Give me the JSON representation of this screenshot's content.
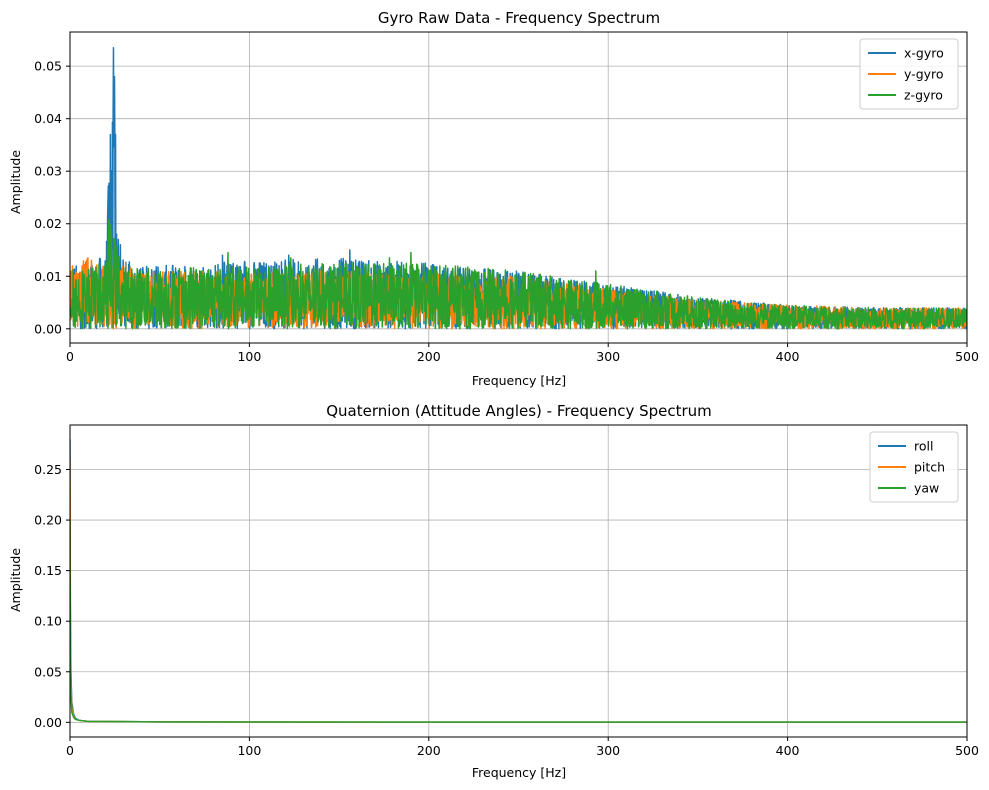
{
  "chart_data": [
    {
      "type": "line",
      "title": "Gyro Raw Data - Frequency Spectrum",
      "xlabel": "Frequency [Hz]",
      "ylabel": "Amplitude",
      "xlim": [
        0,
        500
      ],
      "ylim": [
        -0.0027,
        0.0565
      ],
      "xticks": [
        0,
        100,
        200,
        300,
        400,
        500
      ],
      "yticks": [
        0.0,
        0.01,
        0.02,
        0.03,
        0.04,
        0.05
      ],
      "xtick_labels": [
        "0",
        "100",
        "200",
        "300",
        "400",
        "500"
      ],
      "ytick_labels": [
        "0.00",
        "0.01",
        "0.02",
        "0.03",
        "0.04",
        "0.05"
      ],
      "grid": true,
      "legend_position": "top-right",
      "series": [
        {
          "name": "x-gyro",
          "color": "#1f77b4",
          "envelope_x": [
            0,
            5,
            10,
            20,
            24,
            25,
            26,
            27,
            30,
            50,
            100,
            150,
            200,
            250,
            300,
            350,
            400,
            450,
            500
          ],
          "envelope_y": [
            0.013,
            0.012,
            0.013,
            0.014,
            0.054,
            0.048,
            0.018,
            0.017,
            0.013,
            0.012,
            0.013,
            0.0135,
            0.0125,
            0.011,
            0.0085,
            0.006,
            0.0045,
            0.004,
            0.004
          ],
          "peaks_x": [
            24.3,
            24.8,
            25.3,
            26,
            27,
            28,
            85,
            122,
            156
          ],
          "peaks_y": [
            0.0535,
            0.048,
            0.037,
            0.018,
            0.017,
            0.016,
            0.014,
            0.014,
            0.015
          ]
        },
        {
          "name": "y-gyro",
          "color": "#ff7f0e",
          "envelope_x": [
            0,
            5,
            10,
            20,
            30,
            50,
            100,
            150,
            200,
            250,
            300,
            350,
            400,
            450,
            500
          ],
          "envelope_y": [
            0.012,
            0.0125,
            0.0135,
            0.012,
            0.012,
            0.011,
            0.011,
            0.011,
            0.0105,
            0.01,
            0.0075,
            0.0055,
            0.0045,
            0.004,
            0.004
          ],
          "peaks_x": [
            10,
            12,
            31
          ],
          "peaks_y": [
            0.0135,
            0.013,
            0.0125
          ]
        },
        {
          "name": "z-gyro",
          "color": "#2ca02c",
          "envelope_x": [
            0,
            5,
            10,
            20,
            22,
            30,
            50,
            100,
            150,
            200,
            250,
            300,
            350,
            400,
            450,
            500
          ],
          "envelope_y": [
            0.012,
            0.0115,
            0.012,
            0.0125,
            0.021,
            0.012,
            0.0115,
            0.012,
            0.0125,
            0.0125,
            0.011,
            0.0085,
            0.006,
            0.0045,
            0.004,
            0.004
          ],
          "peaks_x": [
            21.5,
            22,
            88,
            123,
            178,
            190,
            293
          ],
          "peaks_y": [
            0.0205,
            0.021,
            0.0145,
            0.0135,
            0.0135,
            0.0145,
            0.011
          ]
        }
      ]
    },
    {
      "type": "line",
      "title": "Quaternion (Attitude Angles) - Frequency Spectrum",
      "xlabel": "Frequency [Hz]",
      "ylabel": "Amplitude",
      "xlim": [
        0,
        500
      ],
      "ylim": [
        -0.0145,
        0.294
      ],
      "xticks": [
        0,
        100,
        200,
        300,
        400,
        500
      ],
      "yticks": [
        0.0,
        0.05,
        0.1,
        0.15,
        0.2,
        0.25
      ],
      "xtick_labels": [
        "0",
        "100",
        "200",
        "300",
        "400",
        "500"
      ],
      "ytick_labels": [
        "0.00",
        "0.05",
        "0.10",
        "0.15",
        "0.20",
        "0.25"
      ],
      "grid": true,
      "legend_position": "top-right",
      "series": [
        {
          "name": "roll",
          "color": "#1f77b4",
          "x": [
            0,
            0.2,
            0.5,
            1,
            2,
            3,
            5,
            10,
            50,
            100,
            200,
            300,
            400,
            500
          ],
          "y": [
            0.28,
            0.12,
            0.05,
            0.02,
            0.008,
            0.004,
            0.002,
            0.001,
            0.0005,
            0.0003,
            0.0002,
            0.0002,
            0.0002,
            0.0002
          ]
        },
        {
          "name": "pitch",
          "color": "#ff7f0e",
          "x": [
            0,
            0.2,
            0.5,
            1,
            2,
            3,
            5,
            10,
            50,
            100,
            200,
            300,
            400,
            500
          ],
          "y": [
            0.26,
            0.1,
            0.04,
            0.015,
            0.006,
            0.003,
            0.002,
            0.001,
            0.0005,
            0.0003,
            0.0002,
            0.0002,
            0.0002,
            0.0002
          ]
        },
        {
          "name": "yaw",
          "color": "#2ca02c",
          "x": [
            0,
            0.2,
            0.5,
            1,
            2,
            3,
            5,
            10,
            50,
            100,
            200,
            300,
            400,
            500
          ],
          "y": [
            0.2,
            0.08,
            0.03,
            0.01,
            0.005,
            0.003,
            0.002,
            0.001,
            0.0005,
            0.0003,
            0.0002,
            0.0002,
            0.0002,
            0.0002
          ]
        }
      ]
    }
  ]
}
